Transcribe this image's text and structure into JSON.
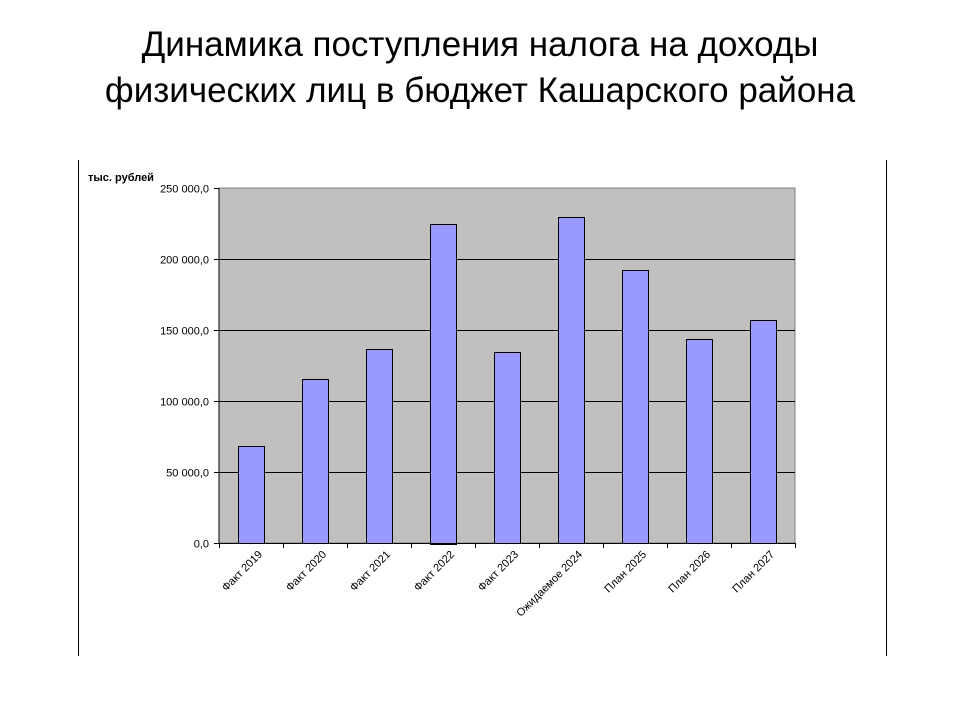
{
  "slide": {
    "title_line1": "Динамика поступления налога на доходы",
    "title_line2": "физических лиц в бюджет Кашарского района"
  },
  "chart_data": {
    "type": "bar",
    "unit_label": "тыс. рублей",
    "categories": [
      "Факт 2019",
      "Факт 2020",
      "Факт 2021",
      "Факт 2022",
      "Факт 2023",
      "Ожидаемое 2024",
      "План 2025",
      "План 2026",
      "План 2027"
    ],
    "values": [
      68500,
      115500,
      136500,
      225000,
      134500,
      229500,
      192500,
      144000,
      157000
    ],
    "ylim": [
      0,
      250000
    ],
    "yticks": [
      0,
      50000,
      100000,
      150000,
      200000,
      250000
    ],
    "ytick_labels": [
      "0,0",
      "50 000,0",
      "100 000,0",
      "150 000,0",
      "200 000,0",
      "250 000,0"
    ],
    "grid": true,
    "colors": {
      "bar_fill": "#9999ff",
      "plot_bg": "#c0c0c0"
    }
  }
}
